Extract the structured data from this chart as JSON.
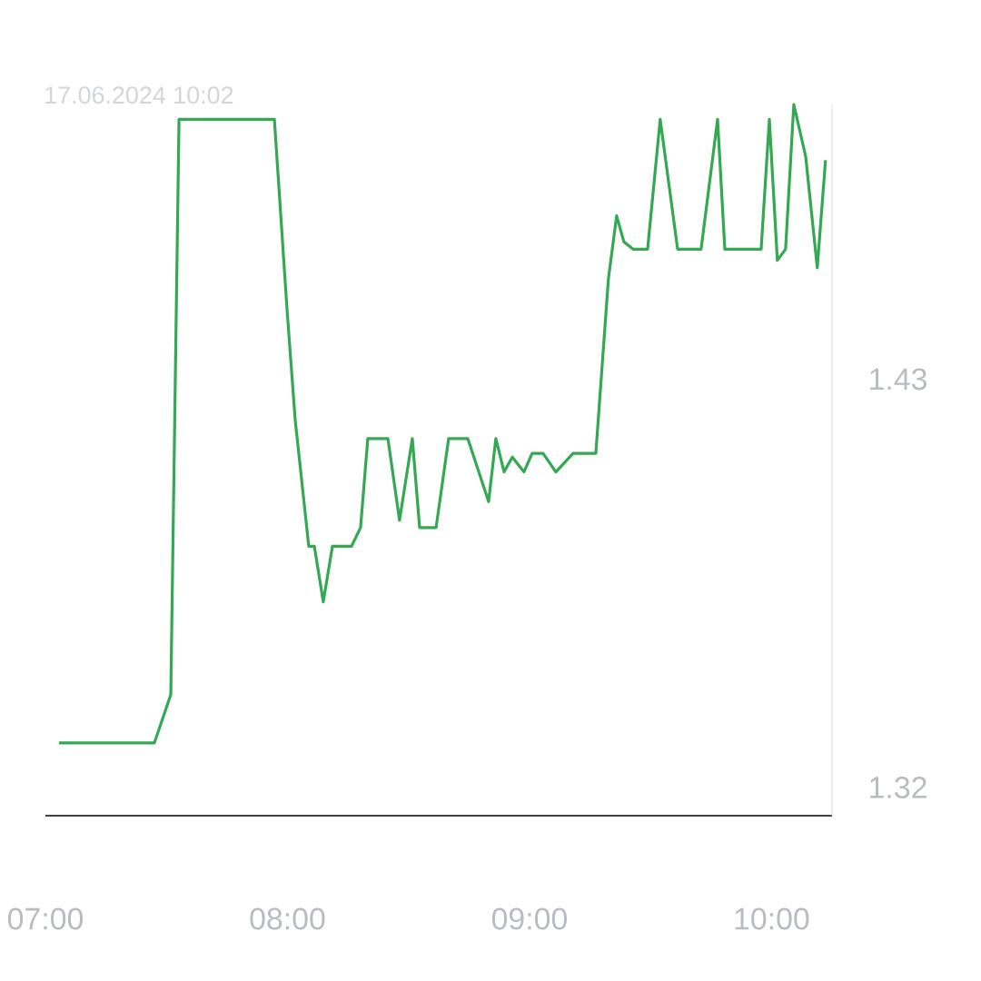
{
  "chart_data": {
    "type": "line",
    "subtitle": "17.06.2024 10:02",
    "x": [
      7.056,
      7.45,
      7.518,
      7.552,
      7.946,
      7.998,
      8.032,
      8.088,
      8.111,
      8.148,
      8.186,
      8.265,
      8.302,
      8.332,
      8.415,
      8.463,
      8.516,
      8.546,
      8.614,
      8.666,
      8.745,
      8.831,
      8.861,
      8.895,
      8.929,
      8.977,
      9.011,
      9.056,
      9.109,
      9.18,
      9.274,
      9.326,
      9.36,
      9.39,
      9.428,
      9.488,
      9.54,
      9.612,
      9.709,
      9.777,
      9.807,
      9.957,
      9.991,
      10.024,
      10.058,
      10.092,
      10.141,
      10.189,
      10.223
    ],
    "values": [
      1.332,
      1.332,
      1.345,
      1.5,
      1.5,
      1.449,
      1.419,
      1.385,
      1.385,
      1.37,
      1.385,
      1.385,
      1.39,
      1.414,
      1.414,
      1.392,
      1.414,
      1.39,
      1.39,
      1.414,
      1.414,
      1.397,
      1.414,
      1.405,
      1.409,
      1.405,
      1.41,
      1.41,
      1.405,
      1.41,
      1.41,
      1.457,
      1.474,
      1.467,
      1.465,
      1.465,
      1.5,
      1.465,
      1.465,
      1.5,
      1.465,
      1.465,
      1.5,
      1.462,
      1.465,
      1.504,
      1.49,
      1.46,
      1.489
    ],
    "color": "#34a853",
    "xlim": [
      7.0,
      10.25
    ],
    "ylim": [
      1.3124,
      1.504
    ],
    "xticks": [
      {
        "value": 7,
        "label": "07:00"
      },
      {
        "value": 8,
        "label": "08:00"
      },
      {
        "value": 9,
        "label": "09:00"
      },
      {
        "value": 10,
        "label": "10:00"
      }
    ],
    "yticks": [
      1.32,
      1.43
    ]
  }
}
